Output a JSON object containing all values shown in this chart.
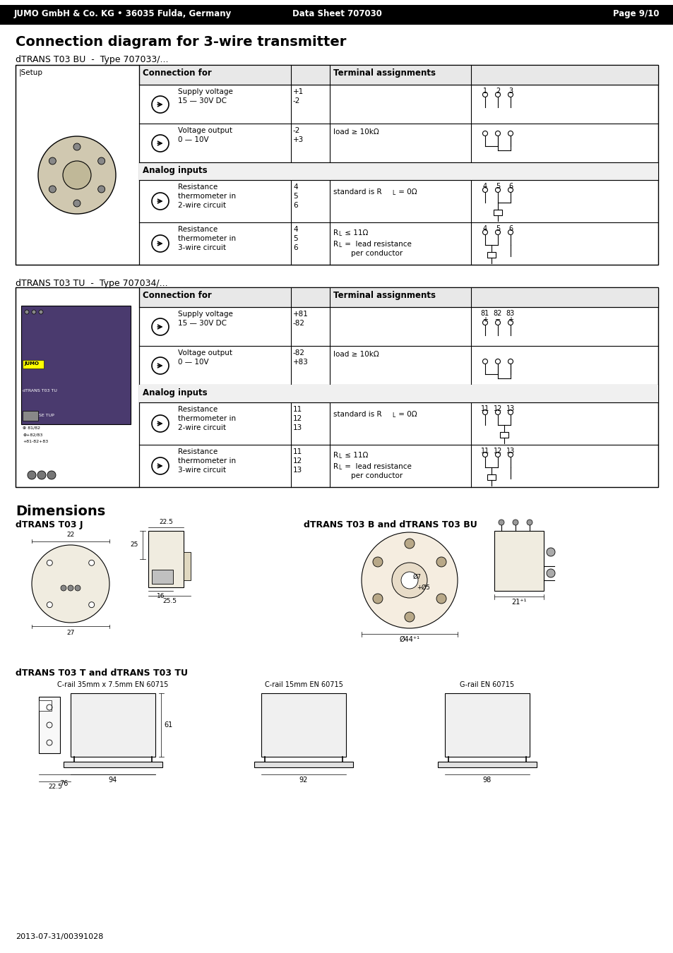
{
  "header_bg": "#000000",
  "header_text_color": "#ffffff",
  "header_left": "JUMO GmbH & Co. KG • 36035 Fulda, Germany",
  "header_center": "Data Sheet 707030",
  "header_right": "Page 9/10",
  "main_title": "Connection diagram for 3-wire transmitter",
  "section1_title": "dTRANS T03 BU  -  Type 707033/...",
  "section2_title": "dTRANS T03 TU  -  Type 707034/...",
  "dimensions_title": "Dimensions",
  "dim_sub1": "dTRANS T03 J",
  "dim_sub2": "dTRANS T03 B and dTRANS T03 BU",
  "dim_sub3": "dTRANS T03 T and dTRANS T03 TU",
  "footer_text": "2013-07-31/00391028",
  "bg_color": "#ffffff",
  "table_border": "#000000",
  "analog_inputs_bg": "#e8e8e8",
  "col_header_bg": "#e0e0e0"
}
